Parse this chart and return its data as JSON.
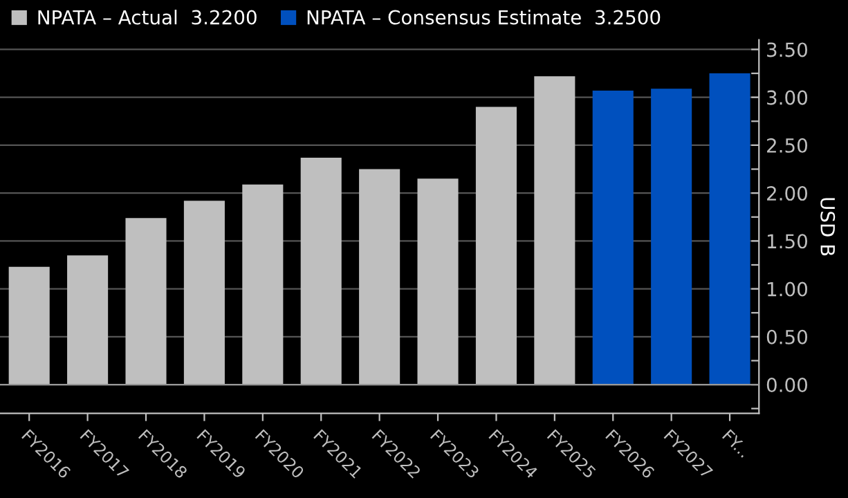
{
  "chart_data": {
    "type": "bar",
    "categories": [
      "FY2016",
      "FY2017",
      "FY2018",
      "FY2019",
      "FY2020",
      "FY2021",
      "FY2022",
      "FY2023",
      "FY2024",
      "FY2025",
      "FY2026",
      "FY2027",
      "FY..."
    ],
    "series": [
      {
        "name": "NPATA – Actual  3.2200",
        "color": "#bfbfbf",
        "values": [
          1.23,
          1.35,
          1.74,
          1.92,
          2.09,
          2.37,
          2.25,
          2.15,
          2.9,
          3.22,
          null,
          null,
          null
        ]
      },
      {
        "name": "NPATA – Consensus Estimate  3.2500",
        "color": "#0050be",
        "values": [
          null,
          null,
          null,
          null,
          null,
          null,
          null,
          null,
          null,
          null,
          3.07,
          3.09,
          3.25
        ]
      }
    ],
    "ylabel": "USD B",
    "ylim": [
      -0.3,
      3.6
    ],
    "yticks": [
      {
        "value": -0.25,
        "label": null
      },
      {
        "value": 0,
        "label": "0.00"
      },
      {
        "value": 0.25,
        "label": null
      },
      {
        "value": 0.5,
        "label": "0.50"
      },
      {
        "value": 0.75,
        "label": null
      },
      {
        "value": 1,
        "label": "1.00"
      },
      {
        "value": 1.25,
        "label": null
      },
      {
        "value": 1.5,
        "label": "1.50"
      },
      {
        "value": 1.75,
        "label": null
      },
      {
        "value": 2,
        "label": "2.00"
      },
      {
        "value": 2.25,
        "label": null
      },
      {
        "value": 2.5,
        "label": "2.50"
      },
      {
        "value": 2.75,
        "label": null
      },
      {
        "value": 3,
        "label": "3.00"
      },
      {
        "value": 3.25,
        "label": null
      },
      {
        "value": 3.5,
        "label": "3.50"
      }
    ],
    "grid": "y",
    "legend": "top left"
  }
}
